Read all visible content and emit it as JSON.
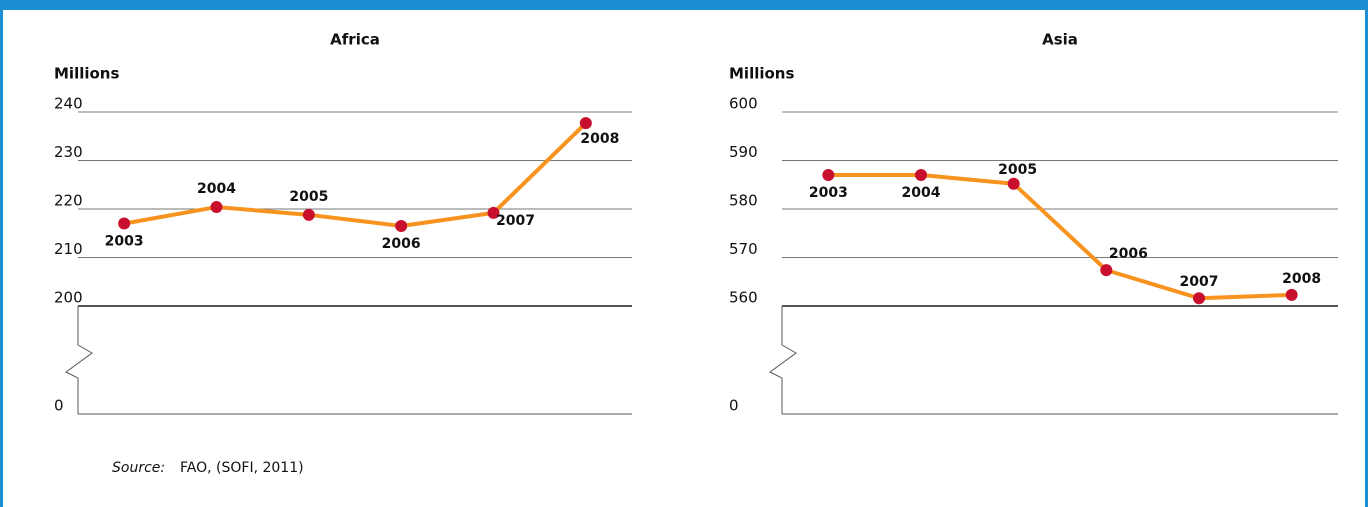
{
  "chart_data": [
    {
      "type": "line",
      "title": "Africa",
      "ylabel": "Millions",
      "categories": [
        "2003",
        "2004",
        "2005",
        "2006",
        "2007",
        "2008"
      ],
      "values": [
        217,
        220.4,
        218.8,
        216.5,
        219.2,
        237.7
      ],
      "color": "#f7931e",
      "marker_color": "#c8102e",
      "ylim": [
        200,
        240
      ],
      "yticks": [
        0,
        200,
        210,
        220,
        230,
        240
      ],
      "axis_break": true,
      "grid": true
    },
    {
      "type": "line",
      "title": "Asia",
      "ylabel": "Millions",
      "categories": [
        "2003",
        "2004",
        "2005",
        "2006",
        "2007",
        "2008"
      ],
      "values": [
        587,
        587,
        585.2,
        567.4,
        561.6,
        562.3
      ],
      "color": "#f7931e",
      "marker_color": "#c8102e",
      "ylim": [
        560,
        600
      ],
      "yticks": [
        0,
        560,
        570,
        580,
        590,
        600
      ],
      "axis_break": true,
      "grid": true
    }
  ],
  "source_label": "Source:",
  "source": "FAO, (SOFI, 2011)"
}
